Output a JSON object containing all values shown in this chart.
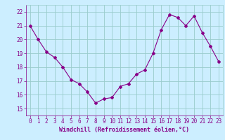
{
  "x": [
    0,
    1,
    2,
    3,
    4,
    5,
    6,
    7,
    8,
    9,
    10,
    11,
    12,
    13,
    14,
    15,
    16,
    17,
    18,
    19,
    20,
    21,
    22,
    23
  ],
  "y": [
    21.0,
    20.0,
    19.1,
    18.7,
    18.0,
    17.1,
    16.8,
    16.2,
    15.4,
    15.7,
    15.8,
    16.6,
    16.8,
    17.5,
    17.8,
    19.0,
    20.7,
    21.8,
    21.6,
    21.0,
    21.7,
    20.5,
    19.5,
    18.4
  ],
  "line_color": "#880088",
  "marker": "D",
  "marker_size": 2.0,
  "bg_color": "#cceeff",
  "grid_color": "#99cccc",
  "xlabel": "Windchill (Refroidissement éolien,°C)",
  "xlabel_color": "#880088",
  "tick_color": "#880088",
  "ylim": [
    14.5,
    22.5
  ],
  "xlim": [
    -0.5,
    23.5
  ],
  "yticks": [
    15,
    16,
    17,
    18,
    19,
    20,
    21,
    22
  ],
  "xticks": [
    0,
    1,
    2,
    3,
    4,
    5,
    6,
    7,
    8,
    9,
    10,
    11,
    12,
    13,
    14,
    15,
    16,
    17,
    18,
    19,
    20,
    21,
    22,
    23
  ],
  "tick_fontsize": 5.5,
  "xlabel_fontsize": 6.0,
  "linewidth": 0.8
}
